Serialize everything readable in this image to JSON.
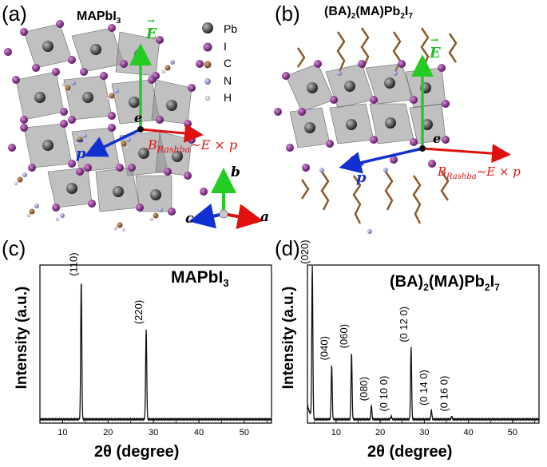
{
  "panels": {
    "a": {
      "letter": "(a)",
      "title_main": "MAPbI",
      "title_sub": "3",
      "legend": [
        {
          "symbol": "Pb",
          "color": "#555555"
        },
        {
          "symbol": "I",
          "color": "#8a2a8f"
        },
        {
          "symbol": "C",
          "color": "#8b5a2b"
        },
        {
          "symbol": "N",
          "color": "#9a9fd0"
        },
        {
          "symbol": "H",
          "color": "#e8e0ea"
        }
      ],
      "vector_E": "E",
      "vector_p": "p",
      "electron": "e",
      "rashba_B": "B",
      "rashba_sub": "Rashba",
      "rashba_rest": "~E × p",
      "axes": {
        "a": "a",
        "b": "b",
        "c": "c"
      }
    },
    "b": {
      "letter": "(b)",
      "title": "(BA)",
      "title_sub1": "2",
      "title_mid": "(MA)Pb",
      "title_sub2": "2",
      "title_end": "I",
      "title_sub3": "7",
      "vector_E": "E",
      "vector_p": "p",
      "electron": "e",
      "rashba_B": "B",
      "rashba_sub": "Rashba",
      "rashba_rest": "~E × p"
    },
    "c": {
      "letter": "(c)",
      "compound_main": "MAPbI",
      "compound_sub": "3",
      "ylabel": "Intensity (a.u.)",
      "xlabel": "2θ (degree)",
      "xticks": [
        "10",
        "20",
        "30",
        "40",
        "50"
      ]
    },
    "d": {
      "letter": "(d)",
      "compound": "(BA)",
      "compound_sub1": "2",
      "compound_mid": "(MA)Pb",
      "compound_sub2": "2",
      "compound_end": "I",
      "compound_sub3": "7",
      "ylabel": "Intensity (a.u.)",
      "xlabel": "2θ (degree)",
      "xticks": [
        "10",
        "20",
        "30",
        "40",
        "50"
      ]
    }
  },
  "chart_data": [
    {
      "type": "line",
      "panel": "c",
      "xlabel": "2θ (degree)",
      "ylabel": "Intensity (a.u.)",
      "xlim": [
        5,
        56
      ],
      "ylim": [
        0,
        1.05
      ],
      "peaks": [
        {
          "x": 14.1,
          "height": 0.92,
          "label": "(110)"
        },
        {
          "x": 28.4,
          "height": 0.6,
          "label": "(220)"
        }
      ],
      "annotation": "MAPbI3"
    },
    {
      "type": "line",
      "panel": "d",
      "xlabel": "2θ (degree)",
      "ylabel": "Intensity (a.u.)",
      "xlim": [
        3.5,
        56
      ],
      "ylim": [
        0,
        1.05
      ],
      "peaks": [
        {
          "x": 4.6,
          "height": 1.0,
          "label": "(020)"
        },
        {
          "x": 9.0,
          "height": 0.36,
          "label": "(040)"
        },
        {
          "x": 13.5,
          "height": 0.44,
          "label": "(060)"
        },
        {
          "x": 18.0,
          "height": 0.09,
          "label": "(080)"
        },
        {
          "x": 22.5,
          "height": 0.02,
          "label": "(0 10 0)"
        },
        {
          "x": 27.0,
          "height": 0.48,
          "label": "(0 12 0)"
        },
        {
          "x": 31.6,
          "height": 0.06,
          "label": "(0 14 0)"
        },
        {
          "x": 36.2,
          "height": 0.02,
          "label": "(0 16 0)"
        }
      ],
      "annotation": "(BA)2(MA)Pb2I7"
    }
  ]
}
